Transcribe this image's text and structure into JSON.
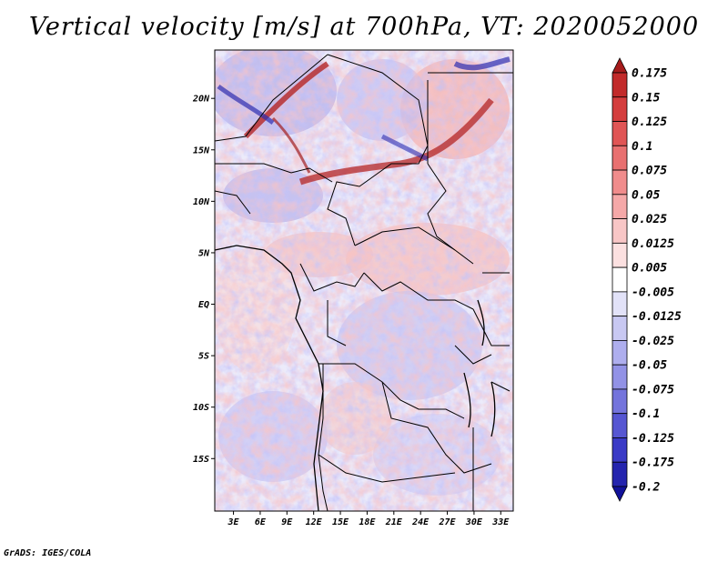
{
  "title": "Vertical velocity [m/s] at 700hPa, VT: 2020052000",
  "credit": "GrADS: IGES/COLA",
  "latitude_labels": [
    "20N",
    "15N",
    "10N",
    "5N",
    "EQ",
    "5S",
    "10S",
    "15S"
  ],
  "latitude_values": [
    20,
    15,
    10,
    5,
    0,
    -5,
    -10,
    -15
  ],
  "longitude_labels": [
    "3E",
    "6E",
    "9E",
    "12E",
    "15E",
    "18E",
    "21E",
    "24E",
    "27E",
    "30E",
    "33E"
  ],
  "longitude_values": [
    3,
    6,
    9,
    12,
    15,
    18,
    21,
    24,
    27,
    30,
    33
  ],
  "colorbar": {
    "labels": [
      "0.175",
      "0.15",
      "0.125",
      "0.1",
      "0.075",
      "0.05",
      "0.025",
      "0.0125",
      "0.005",
      "-0.005",
      "-0.0125",
      "-0.025",
      "-0.05",
      "-0.075",
      "-0.1",
      "-0.125",
      "-0.175",
      "-0.2"
    ],
    "colors": [
      "#a61c1c",
      "#c22a2a",
      "#d43d3d",
      "#e05555",
      "#e87070",
      "#f08c8c",
      "#f5a8a8",
      "#f8c6c6",
      "#fbe0e0",
      "#ffffff",
      "#e2e2f8",
      "#c8c8f2",
      "#aeaeee",
      "#9292e6",
      "#7474dc",
      "#5656d2",
      "#3a3ac6",
      "#2424ae",
      "#12129a"
    ]
  }
}
